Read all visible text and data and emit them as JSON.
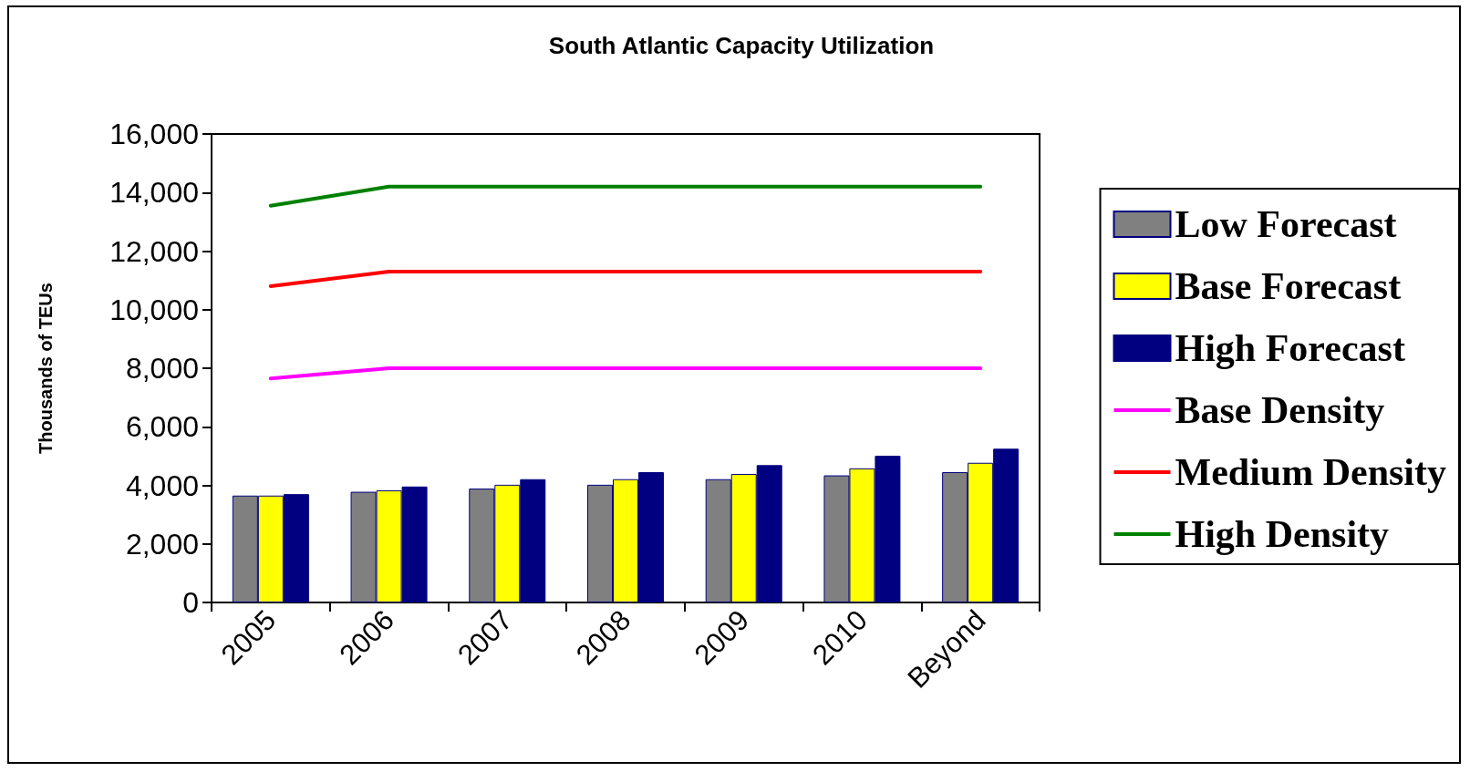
{
  "chart_data": {
    "type": "bar",
    "title": "South Atlantic Capacity Utilization",
    "ylabel": "Thousands of TEUs",
    "categories": [
      "2005",
      "2006",
      "2007",
      "2008",
      "2009",
      "2010",
      "Beyond"
    ],
    "series": [
      {
        "name": "Low Forecast",
        "color": "#808080",
        "values": [
          3650,
          3780,
          3890,
          4020,
          4210,
          4340,
          4450
        ]
      },
      {
        "name": "Base Forecast",
        "color": "#ffff00",
        "values": [
          3650,
          3830,
          4020,
          4210,
          4390,
          4580,
          4770
        ]
      },
      {
        "name": "High Forecast",
        "color": "#000080",
        "values": [
          3700,
          3960,
          4210,
          4450,
          4690,
          5010,
          5250
        ]
      },
      {
        "name": "Base Density",
        "type": "line",
        "color": "#ff00ff",
        "values": [
          7650,
          8000,
          8000,
          8000,
          8000,
          8000,
          8000
        ]
      },
      {
        "name": "Medium Density",
        "type": "line",
        "color": "#ff0000",
        "values": [
          10800,
          11300,
          11300,
          11300,
          11300,
          11300,
          11300
        ]
      },
      {
        "name": "High Density",
        "type": "line",
        "color": "#008000",
        "values": [
          13550,
          14200,
          14200,
          14200,
          14200,
          14200,
          14200
        ]
      }
    ],
    "ylim": [
      0,
      16000
    ],
    "yticks": [
      0,
      {
        "value": 2000,
        "label": "2,000"
      },
      {
        "value": 4000,
        "label": "4,000"
      },
      {
        "value": 6000,
        "label": "6,000"
      },
      {
        "value": 8000,
        "label": "8,000"
      },
      {
        "value": 10000,
        "label": "10,000"
      },
      {
        "value": 12000,
        "label": "12,000"
      },
      {
        "value": 14000,
        "label": "14,000"
      },
      {
        "value": 16000,
        "label": "16,000"
      }
    ],
    "grid": false,
    "legend": "right",
    "marker": "none",
    "line_style": "solid"
  }
}
